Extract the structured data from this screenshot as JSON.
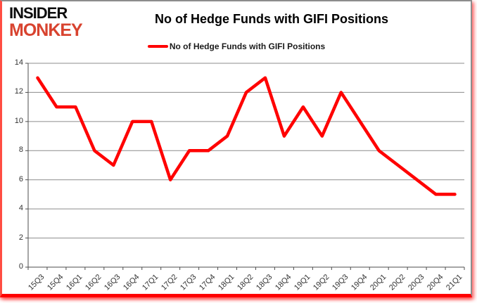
{
  "logo": {
    "line1": "INSIDER",
    "line2": "MONKEY"
  },
  "header": {
    "title": "No of Hedge Funds with GIFI Positions"
  },
  "legend": {
    "label": "No of Hedge Funds with GIFI Positions"
  },
  "chart_data": {
    "type": "line",
    "title": "No of Hedge Funds with GIFI Positions",
    "series_name": "No of Hedge Funds with GIFI Positions",
    "categories": [
      "15Q3",
      "15Q4",
      "16Q1",
      "16Q2",
      "16Q3",
      "16Q4",
      "17Q1",
      "17Q2",
      "17Q3",
      "17Q4",
      "18Q1",
      "18Q2",
      "18Q3",
      "18Q4",
      "19Q1",
      "19Q2",
      "19Q3",
      "19Q4",
      "20Q1",
      "20Q2",
      "20Q3",
      "20Q4",
      "21Q1"
    ],
    "values": [
      13,
      11,
      11,
      8,
      7,
      10,
      10,
      6,
      8,
      8,
      9,
      12,
      13,
      9,
      11,
      9,
      12,
      10,
      8,
      7,
      6,
      5,
      5
    ],
    "ylim": [
      0,
      14
    ],
    "yticks": [
      0,
      2,
      4,
      6,
      8,
      10,
      12,
      14
    ],
    "grid": true,
    "legend_position": "top",
    "xlabel": "",
    "ylabel": ""
  },
  "colors": {
    "line": "#FF0000",
    "logo_red": "#D8432F",
    "grid": "#8c8c8c",
    "axis": "#4d4d4d",
    "label_text": "#333333",
    "border_red": "#FF0000",
    "border_gray": "#8C8C8C"
  }
}
